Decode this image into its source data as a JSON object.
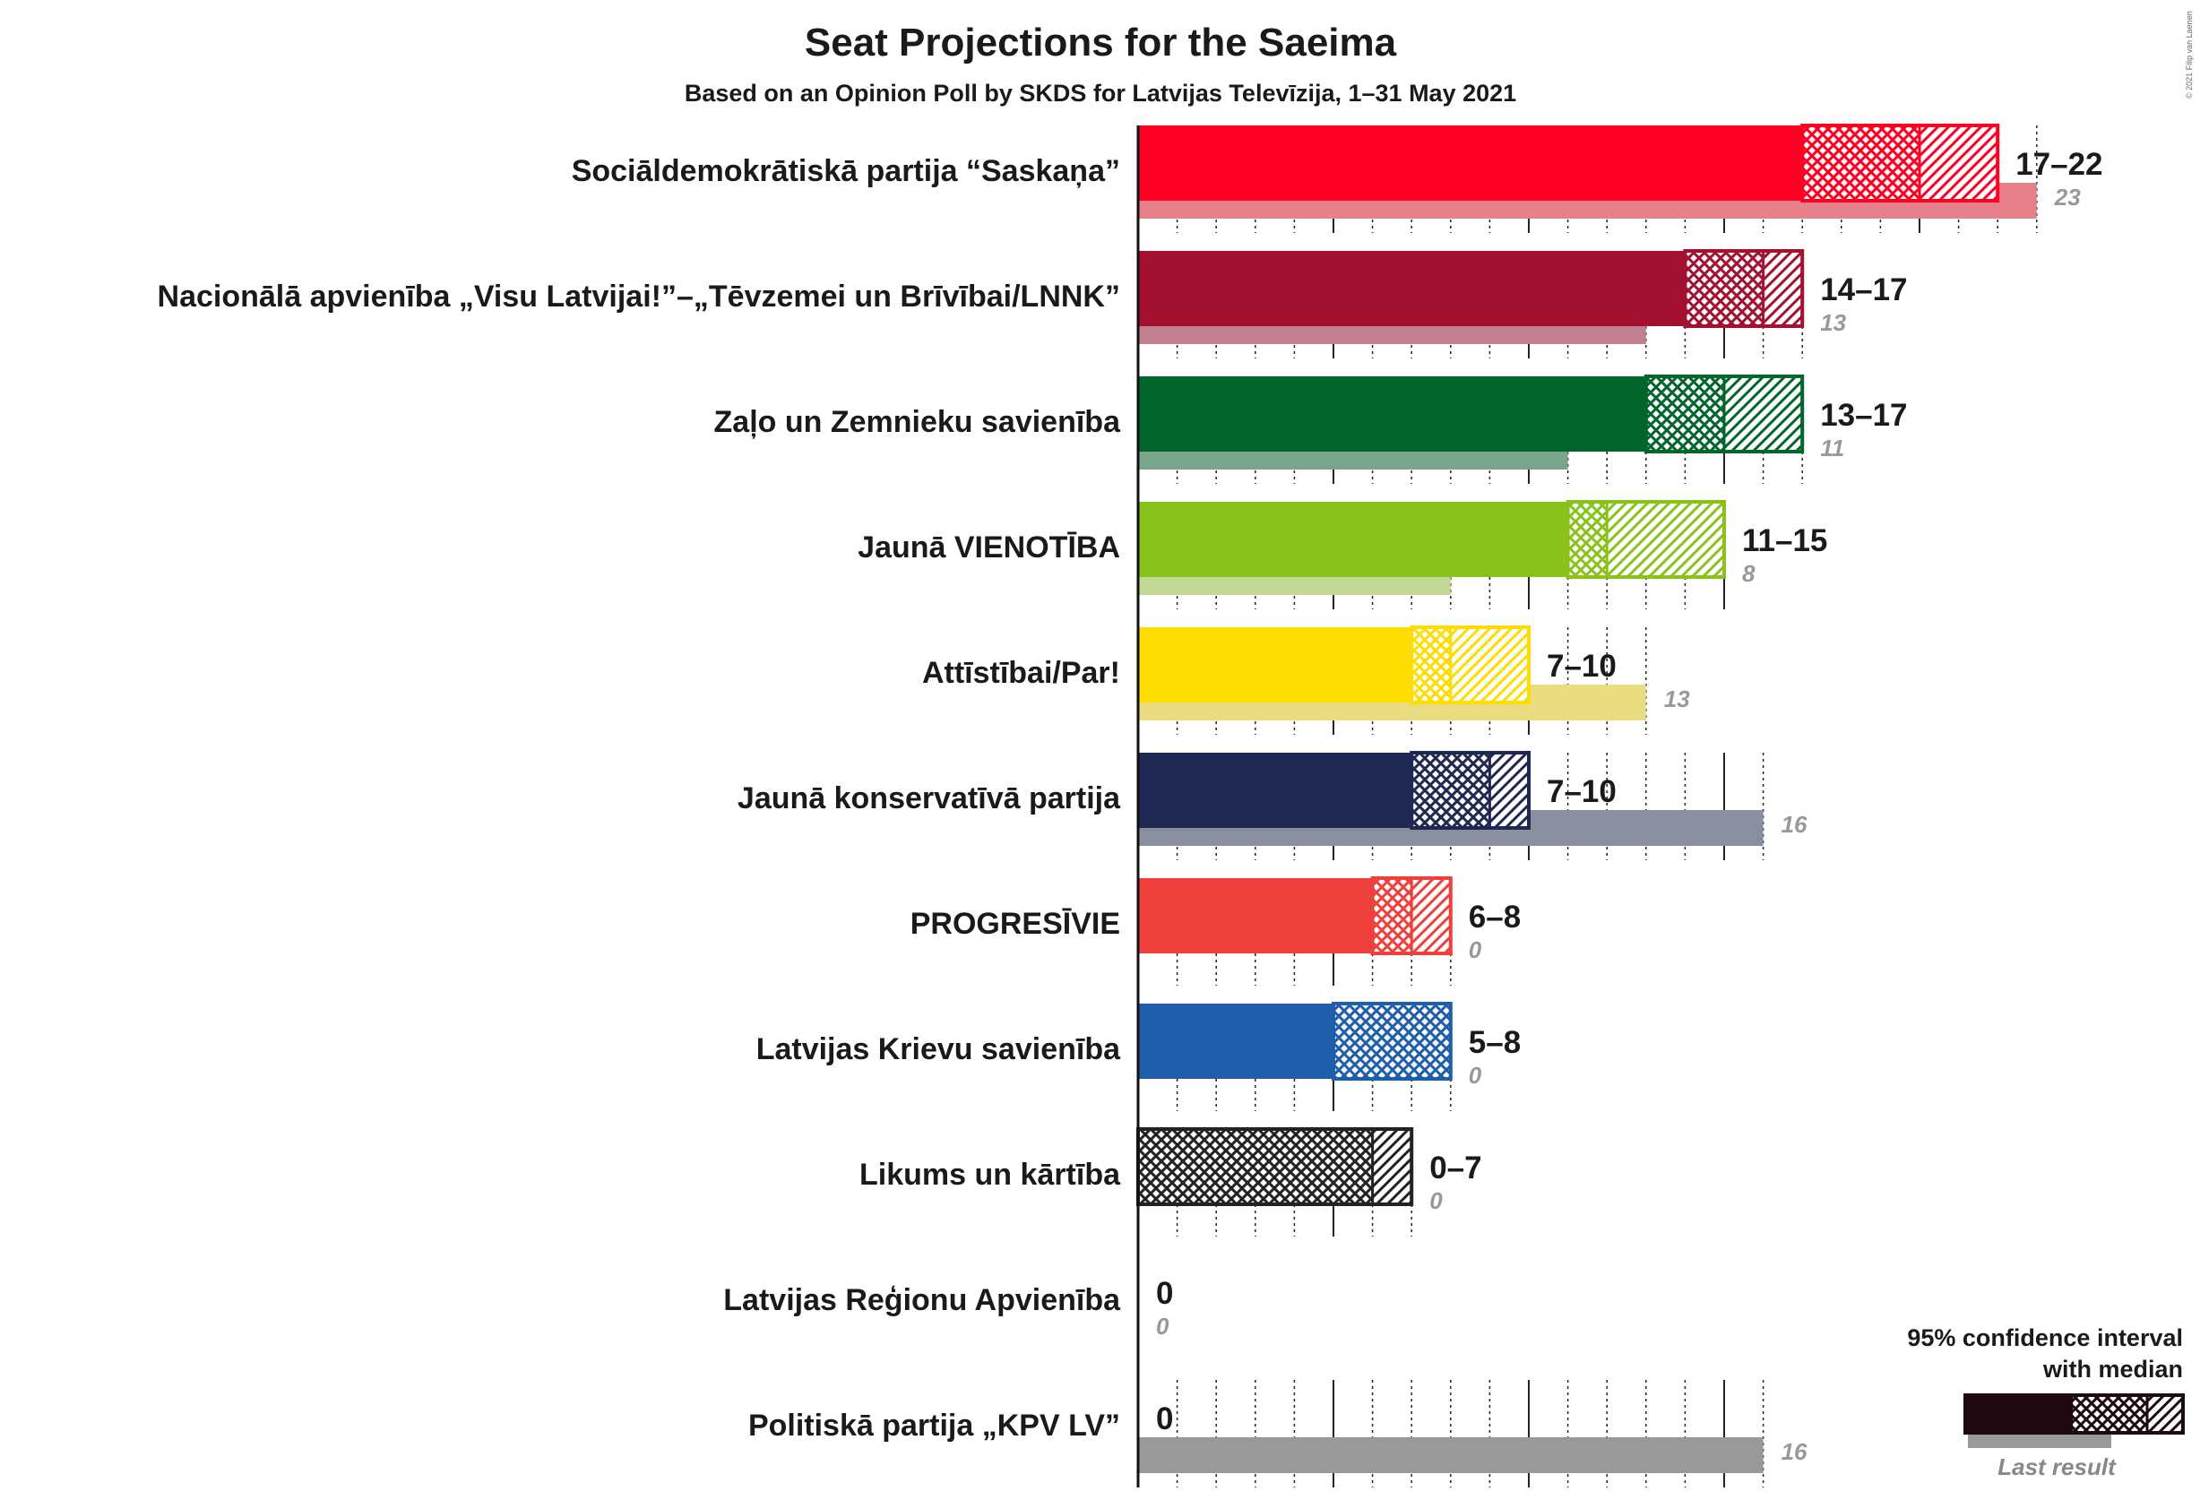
{
  "chart_data": {
    "type": "bar",
    "orientation": "horizontal",
    "title": "Seat Projections for the Saeima",
    "subtitle": "Based on an Opinion Poll by SKDS for Latvijas Televīzija, 1–31 May 2021",
    "xlim": [
      0,
      23
    ],
    "grid": true,
    "legend_position": "bottom-right",
    "legend": {
      "title_line1": "95% confidence interval",
      "title_line2": "with median",
      "last_result_label": "Last result",
      "color": "#1f0a0f"
    },
    "copyright": "© 2021 Filip van Laenen",
    "parties": [
      {
        "name": "Sociāldemokrātiskā partija “Saskaņa”",
        "low": 17,
        "median": 20,
        "high": 22,
        "last": 23,
        "range_label": "17–22",
        "last_label": "23",
        "color": "#ff0022",
        "last_color": "#e8808c"
      },
      {
        "name": "Nacionālā apvienība „Visu Latvijai!”–„Tēvzemei un Brīvībai/LNNK”",
        "low": 14,
        "median": 16,
        "high": 17,
        "last": 13,
        "range_label": "14–17",
        "last_label": "13",
        "color": "#a31030",
        "last_color": "#c08090"
      },
      {
        "name": "Zaļo un Zemnieku savienība",
        "low": 13,
        "median": 15,
        "high": 17,
        "last": 11,
        "range_label": "13–17",
        "last_label": "11",
        "color": "#00662b",
        "last_color": "#7aa58a"
      },
      {
        "name": "Jaunā VIENOTĪBA",
        "low": 11,
        "median": 12,
        "high": 15,
        "last": 8,
        "range_label": "11–15",
        "last_label": "8",
        "color": "#88c21b",
        "last_color": "#c0d894"
      },
      {
        "name": "Attīstībai/Par!",
        "low": 7,
        "median": 8,
        "high": 10,
        "last": 13,
        "range_label": "7–10",
        "last_label": "13",
        "color": "#ffdd00",
        "last_color": "#eadc80"
      },
      {
        "name": "Jaunā konservatīvā partija",
        "low": 7,
        "median": 9,
        "high": 10,
        "last": 16,
        "range_label": "7–10",
        "last_label": "16",
        "color": "#1f2852",
        "last_color": "#8a8f9e"
      },
      {
        "name": "PROGRESĪVIE",
        "low": 6,
        "median": 7,
        "high": 8,
        "last": 0,
        "range_label": "6–8",
        "last_label": "0",
        "color": "#f0403b",
        "last_color": "#f0a0a0"
      },
      {
        "name": "Latvijas Krievu savienība",
        "low": 5,
        "median": 8,
        "high": 8,
        "last": 0,
        "range_label": "5–8",
        "last_label": "0",
        "color": "#1e5eaa",
        "last_color": "#90b0d8"
      },
      {
        "name": "Likums un kārtība",
        "low": 0,
        "median": 6,
        "high": 7,
        "last": 0,
        "range_label": "0–7",
        "last_label": "0",
        "color": "#222222",
        "last_color": "#999999"
      },
      {
        "name": "Latvijas Reģionu Apvienība",
        "low": 0,
        "median": 0,
        "high": 0,
        "last": 0,
        "range_label": "0",
        "last_label": "0",
        "color": "#555555",
        "last_color": "#999999"
      },
      {
        "name": "Politiskā partija „KPV LV”",
        "low": 0,
        "median": 0,
        "high": 0,
        "last": 16,
        "range_label": "0",
        "last_label": "16",
        "color": "#555555",
        "last_color": "#999999"
      }
    ]
  }
}
